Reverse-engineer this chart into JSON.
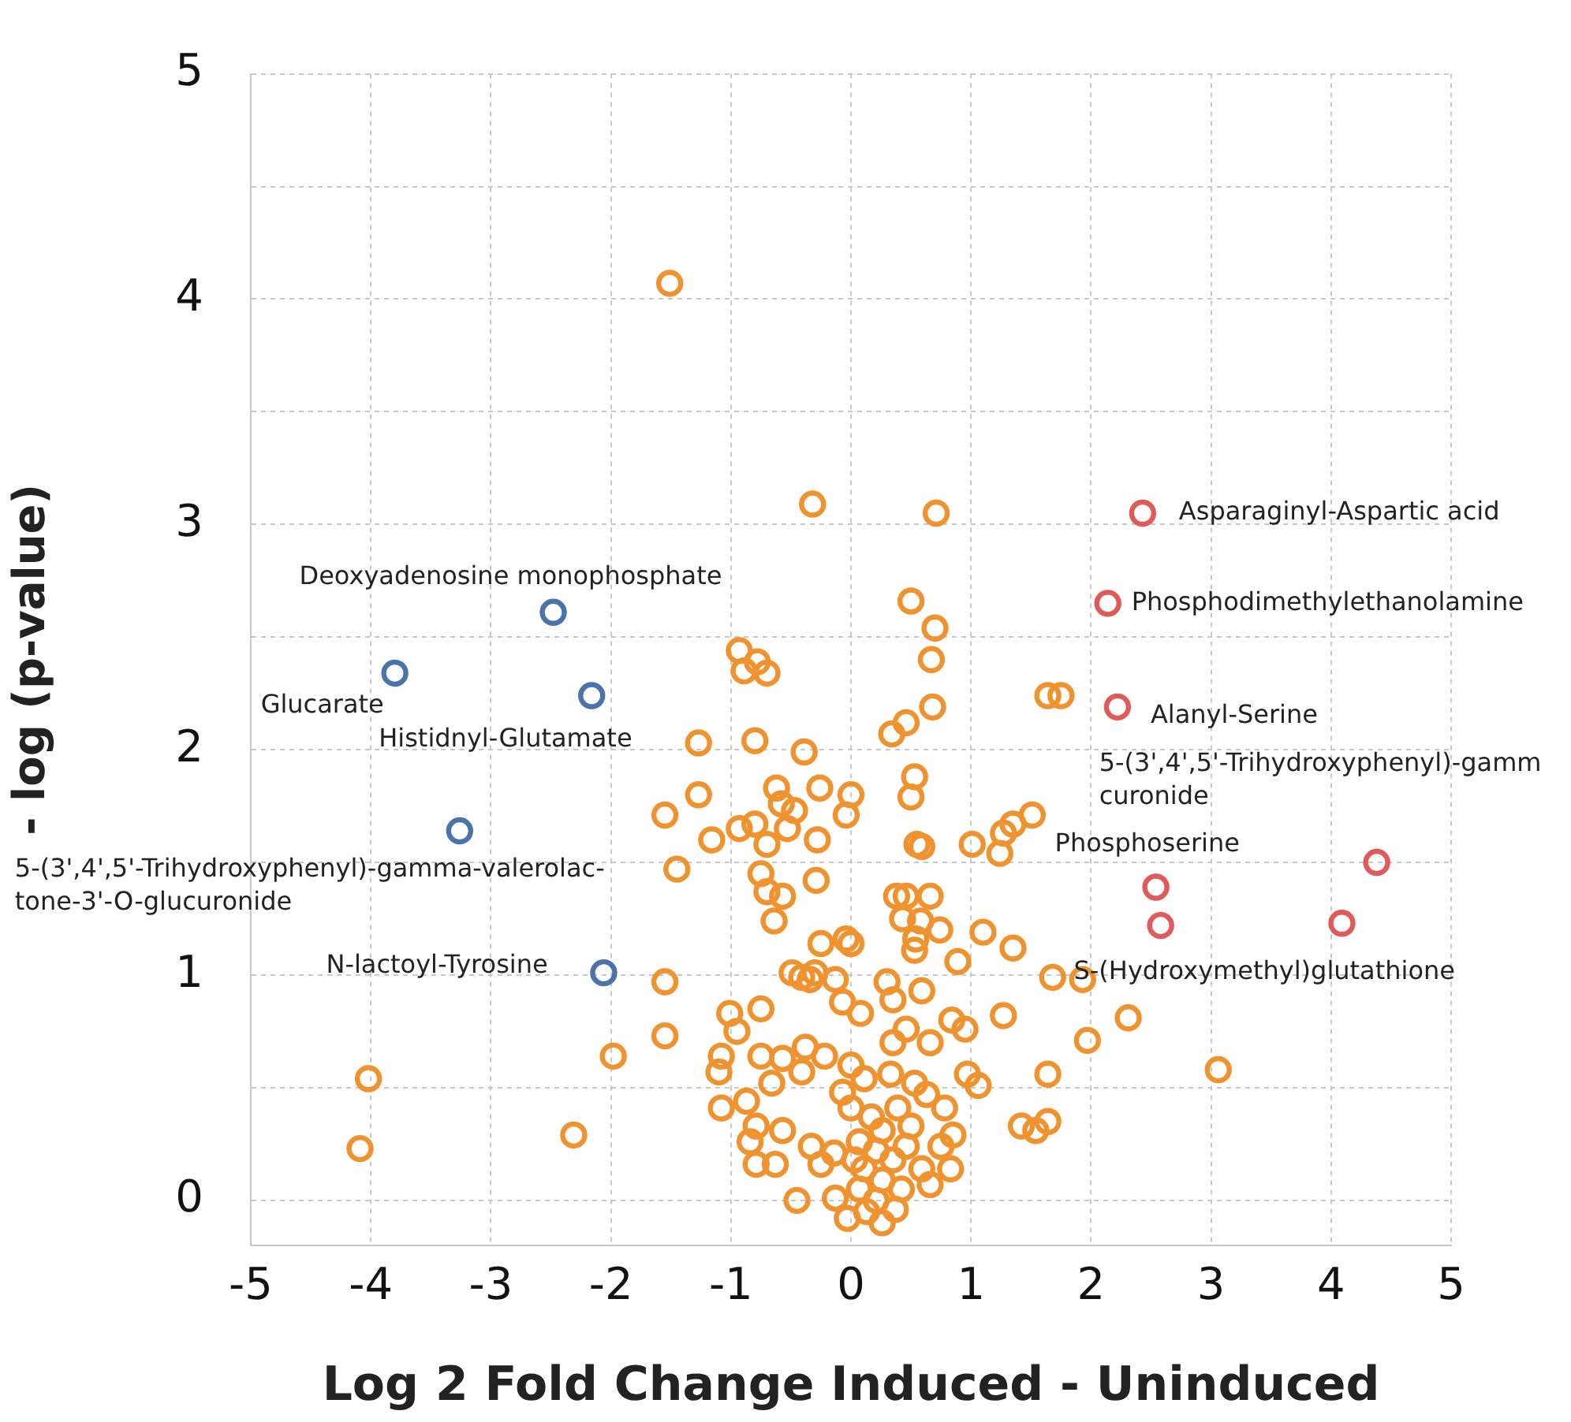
{
  "chart_data": {
    "type": "scatter",
    "xlabel": "Log 2 Fold Change Induced - Uninduced",
    "ylabel": "- log (p-value)",
    "xlim": [
      -5,
      5
    ],
    "xticks": [
      -5,
      -4,
      -3,
      -2,
      -1,
      0,
      1,
      2,
      3,
      4,
      5
    ],
    "ylim": [
      -0.2,
      5
    ],
    "yticks": [
      0,
      {
        "value": 0.5,
        "label": null
      },
      1,
      {
        "value": 1.5,
        "label": null
      },
      2,
      {
        "value": 2.5,
        "label": null
      },
      3,
      {
        "value": 3.5,
        "label": null
      },
      4,
      {
        "value": 4.5,
        "label": null
      },
      5
    ],
    "grid": true,
    "legend": false,
    "marker": "circle",
    "series": [
      {
        "color": "#f0922e",
        "x": [
          -1.51,
          -0.32,
          0.71,
          0.5,
          0.7,
          -0.93,
          -0.89,
          -0.78,
          -0.7,
          0.67,
          1.64,
          1.75,
          0.68,
          0.46,
          0.34,
          -1.27,
          -0.8,
          -0.39,
          0.53,
          -0.62,
          -0.58,
          -0.47,
          -0.26,
          0.0,
          -1.27,
          -1.55,
          -0.8,
          -0.53,
          -0.04,
          0.5,
          1.51,
          1.35,
          1.27,
          1.24,
          1.01,
          0.55,
          0.59,
          -0.28,
          -0.93,
          -1.16,
          -0.7,
          -1.45,
          -0.75,
          -0.29,
          -0.7,
          -0.57,
          -0.64,
          0.38,
          0.46,
          0.66,
          0.43,
          0.58,
          0.74,
          0.54,
          0.53,
          1.1,
          1.35,
          -0.25,
          -0.04,
          0.0,
          0.89,
          -0.49,
          -0.41,
          -0.3,
          -0.34,
          -0.13,
          0.3,
          -1.55,
          1.68,
          1.93,
          0.35,
          0.59,
          0.08,
          -0.07,
          -1.01,
          -0.75,
          -0.95,
          1.27,
          2.31,
          0.84,
          0.95,
          -1.55,
          0.46,
          0.35,
          0.66,
          -0.38,
          -0.22,
          1.97,
          -1.98,
          -1.08,
          -1.1,
          -0.75,
          0.97,
          1.06,
          1.64,
          3.06,
          -4.02,
          -0.57,
          -0.66,
          -0.41,
          0.0,
          0.11,
          -0.07,
          0.33,
          0.53,
          0.63,
          0.78,
          -1.08,
          -0.87,
          -0.79,
          -0.57,
          -0.84,
          1.42,
          1.54,
          1.64,
          0.85,
          0.75,
          0.83,
          -2.31,
          -4.09,
          -0.79,
          -0.63,
          -0.33,
          -0.25,
          -0.14,
          -0.45,
          0.0,
          0.17,
          0.26,
          0.07,
          0.21,
          0.35,
          0.11,
          0.26,
          0.42,
          0.07,
          0.21,
          0.37,
          0.13,
          0.26,
          -0.03,
          -0.13,
          0.03,
          0.46,
          0.59,
          0.66,
          0.5,
          0.39
        ],
        "values": [
          4.07,
          3.09,
          3.05,
          2.66,
          2.54,
          2.44,
          2.35,
          2.39,
          2.34,
          2.4,
          2.24,
          2.24,
          2.19,
          2.12,
          2.07,
          2.03,
          2.04,
          1.99,
          1.88,
          1.83,
          1.76,
          1.73,
          1.83,
          1.8,
          1.8,
          1.71,
          1.67,
          1.65,
          1.71,
          1.79,
          1.71,
          1.67,
          1.63,
          1.54,
          1.58,
          1.58,
          1.57,
          1.6,
          1.65,
          1.6,
          1.58,
          1.47,
          1.45,
          1.42,
          1.37,
          1.35,
          1.24,
          1.35,
          1.35,
          1.35,
          1.25,
          1.24,
          1.2,
          1.16,
          1.11,
          1.19,
          1.12,
          1.14,
          1.16,
          1.14,
          1.06,
          1.01,
          0.99,
          1.01,
          0.98,
          0.98,
          0.97,
          0.97,
          0.99,
          0.98,
          0.89,
          0.93,
          0.83,
          0.88,
          0.83,
          0.85,
          0.75,
          0.82,
          0.81,
          0.8,
          0.76,
          0.73,
          0.76,
          0.7,
          0.7,
          0.68,
          0.64,
          0.71,
          0.64,
          0.64,
          0.57,
          0.64,
          0.56,
          0.51,
          0.56,
          0.58,
          0.54,
          0.63,
          0.52,
          0.57,
          0.6,
          0.54,
          0.48,
          0.56,
          0.52,
          0.47,
          0.41,
          0.41,
          0.44,
          0.33,
          0.31,
          0.26,
          0.33,
          0.31,
          0.35,
          0.29,
          0.24,
          0.14,
          0.29,
          0.23,
          0.16,
          0.16,
          0.24,
          0.16,
          0.21,
          0.0,
          0.41,
          0.37,
          0.31,
          0.26,
          0.22,
          0.18,
          0.14,
          0.09,
          0.05,
          0.05,
          0.0,
          -0.04,
          -0.05,
          -0.1,
          -0.08,
          0.01,
          0.18,
          0.24,
          0.14,
          0.07,
          0.33,
          0.41
        ]
      },
      {
        "color": "#4a74a8",
        "x": [
          -2.48,
          -3.8,
          -2.16,
          -3.26,
          -2.06
        ],
        "values": [
          2.61,
          2.34,
          2.24,
          1.64,
          1.01
        ]
      },
      {
        "color": "#e05a5a",
        "x": [
          2.43,
          2.14,
          2.22,
          4.38,
          2.54,
          2.58,
          4.09
        ],
        "values": [
          3.05,
          2.65,
          2.19,
          1.5,
          1.39,
          1.22,
          1.23
        ]
      }
    ],
    "annotations": [
      {
        "text": "Deoxyadenosine monophosphate",
        "x": -2.48,
        "y": 2.61
      },
      {
        "text": "Glucarate",
        "x": -3.8,
        "y": 2.34
      },
      {
        "text": "Histidnyl-Glutamate",
        "x": -2.16,
        "y": 2.24
      },
      {
        "text": "5-(3',4',5'-Trihydroxyphenyl)-gamma-valerolac-\ntone-3'-O-glucuronide",
        "x": -3.26,
        "y": 1.64
      },
      {
        "text": "N-lactoyl-Tyrosine",
        "x": -2.06,
        "y": 1.01
      },
      {
        "text": "Asparaginyl-Aspartic acid",
        "x": 2.43,
        "y": 3.05
      },
      {
        "text": "Phosphodimethylethanolamine",
        "x": 2.14,
        "y": 2.65
      },
      {
        "text": "Alanyl-Serine",
        "x": 2.22,
        "y": 2.19
      },
      {
        "text": "5-(3',4',5'-Trihydroxyphenyl)-gamm\ncuronide",
        "x": 4.38,
        "y": 1.5
      },
      {
        "text": "Phosphoserine",
        "x": 2.54,
        "y": 1.39
      },
      {
        "text": "S-(Hydroxymethyl)glutathione",
        "x": 4.09,
        "y": 1.23
      }
    ]
  }
}
